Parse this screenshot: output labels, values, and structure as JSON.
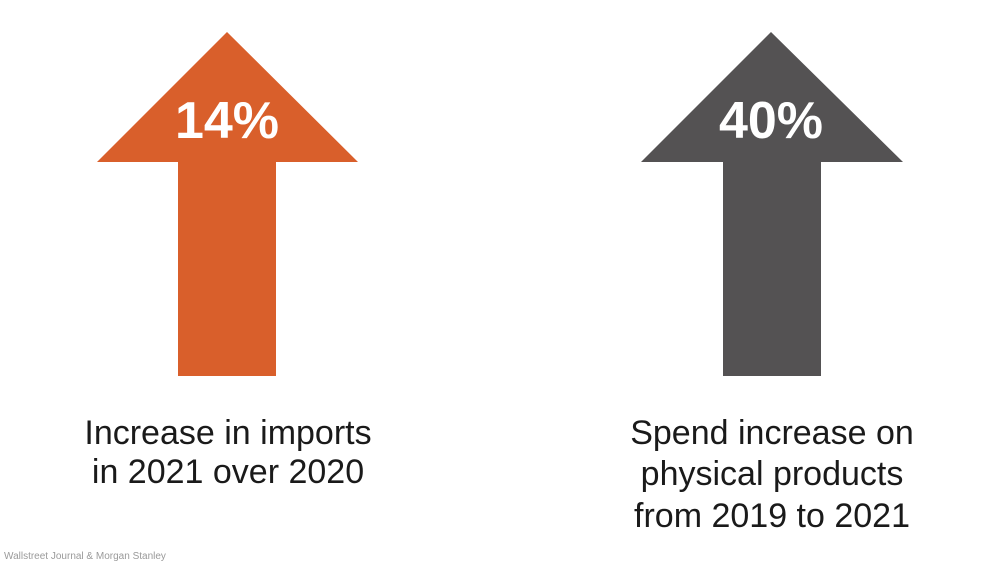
{
  "stats": [
    {
      "value": "14%",
      "description": [
        "Increase in imports",
        "in 2021 over 2020"
      ]
    },
    {
      "value": "40%",
      "description": [
        "Spend increase on",
        "physical products",
        "from 2019 to 2021"
      ]
    }
  ],
  "source": "Wallstreet Journal & Morgan Stanley"
}
